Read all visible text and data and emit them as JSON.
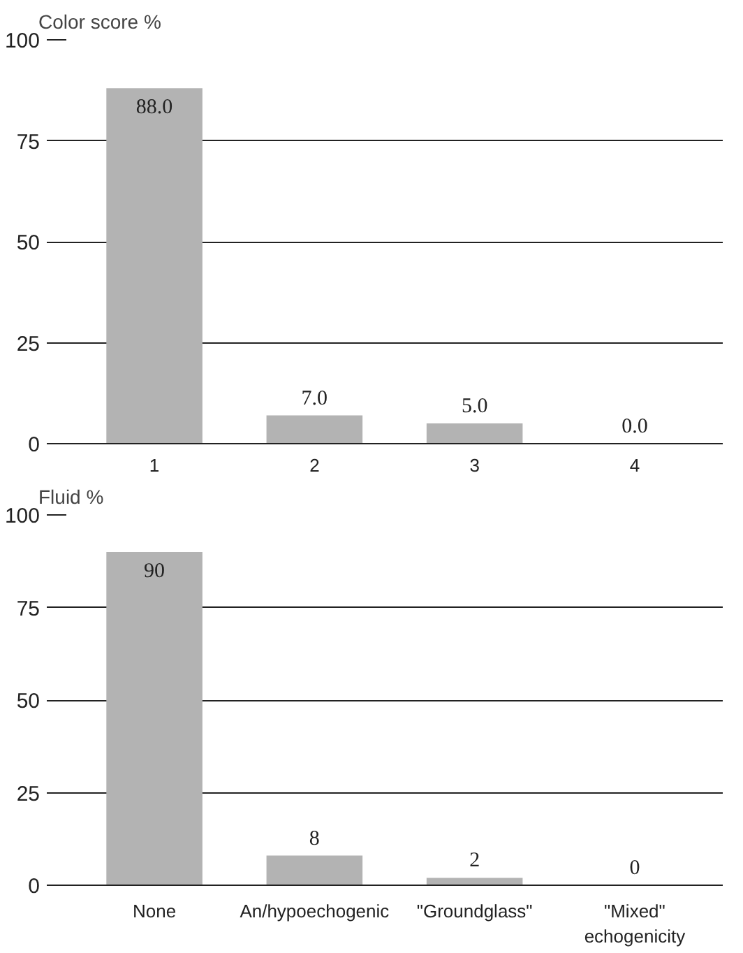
{
  "chart_data": [
    {
      "type": "bar",
      "ylabel": "Color score %",
      "categories": [
        "1",
        "2",
        "3",
        "4"
      ],
      "values": [
        88.0,
        7.0,
        5.0,
        0.0
      ],
      "value_labels": [
        "88.0",
        "7.0",
        "5.0",
        "0.0"
      ],
      "color": "#b3b3b3",
      "ylim": [
        0,
        100
      ],
      "yticks": [
        0,
        25,
        50,
        75,
        100
      ],
      "grid": "y"
    },
    {
      "type": "bar",
      "ylabel": "Fluid %",
      "categories": [
        "None",
        "An/hypoechogenic",
        "\"Groundglass\"",
        "\"Mixed\"\nechogenicity"
      ],
      "values": [
        90,
        8,
        2,
        0
      ],
      "data_labels": true,
      "color": "#b3b3b3",
      "ylim": [
        0,
        100
      ],
      "yticks": [
        0,
        25,
        50,
        75,
        100
      ],
      "grid": "y"
    }
  ]
}
